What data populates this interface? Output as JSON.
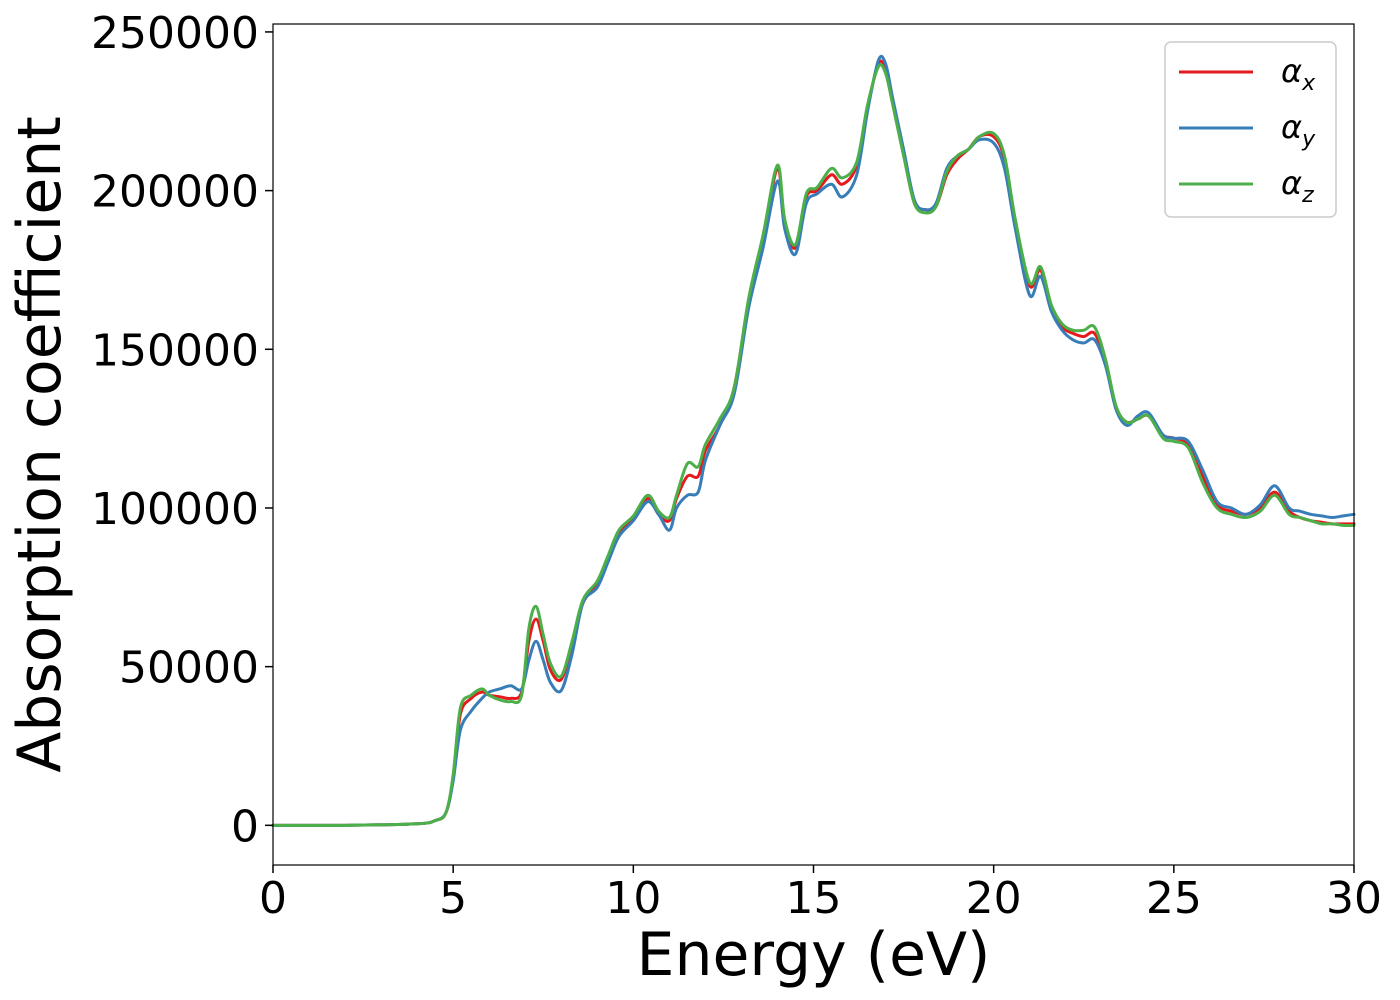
{
  "chart_data": {
    "type": "line",
    "title": "",
    "xlabel": "Energy (eV)",
    "ylabel": "Absorption coefficient",
    "xlim": [
      0,
      30
    ],
    "ylim": [
      -12500,
      252500
    ],
    "xticks": [
      0,
      5,
      10,
      15,
      20,
      25,
      30
    ],
    "xtick_labels": [
      "0",
      "5",
      "10",
      "15",
      "20",
      "25",
      "30"
    ],
    "yticks": [
      0,
      50000,
      100000,
      150000,
      200000,
      250000
    ],
    "ytick_labels": [
      "0",
      "50000",
      "100000",
      "150000",
      "200000",
      "250000"
    ],
    "grid": false,
    "legend_position": "top-right",
    "series": [
      {
        "name": "αx",
        "symbol": "α",
        "subscript": "x",
        "color": "#e41a1c",
        "x": [
          0,
          2,
          4,
          4.5,
          4.8,
          5,
          5.2,
          5.5,
          5.8,
          6,
          6.3,
          6.6,
          6.9,
          7.1,
          7.3,
          7.5,
          7.7,
          8,
          8.3,
          8.6,
          9,
          9.3,
          9.6,
          10,
          10.4,
          10.7,
          11,
          11.2,
          11.5,
          11.8,
          12,
          12.4,
          12.8,
          13.2,
          13.6,
          14,
          14.2,
          14.5,
          14.8,
          15.1,
          15.5,
          15.8,
          16.2,
          16.5,
          16.8,
          17,
          17.2,
          17.5,
          17.8,
          18.1,
          18.4,
          18.7,
          19,
          19.3,
          19.6,
          20,
          20.3,
          20.6,
          21,
          21.3,
          21.6,
          21.9,
          22.2,
          22.5,
          22.8,
          23.1,
          23.4,
          23.7,
          24,
          24.3,
          24.7,
          25,
          25.4,
          25.8,
          26.2,
          26.6,
          27,
          27.4,
          27.8,
          28.2,
          28.5,
          28.8,
          29.1,
          29.4,
          29.7,
          30
        ],
        "y": [
          0,
          0,
          500,
          1500,
          4000,
          15000,
          35000,
          40000,
          42000,
          41000,
          40500,
          40000,
          42000,
          58000,
          65000,
          58000,
          49000,
          46000,
          57000,
          70000,
          76000,
          84000,
          92000,
          97000,
          103000,
          98000,
          96000,
          103000,
          110000,
          110000,
          118000,
          126000,
          138000,
          165000,
          185000,
          207000,
          190000,
          182000,
          198000,
          200000,
          205000,
          202000,
          208000,
          226000,
          240000,
          238000,
          228000,
          212000,
          196000,
          194000,
          195000,
          205000,
          210000,
          213000,
          217000,
          217000,
          210000,
          190000,
          170000,
          175000,
          163000,
          157000,
          155000,
          154000,
          155000,
          146000,
          131000,
          127000,
          128000,
          129000,
          123000,
          122000,
          120000,
          110000,
          101000,
          99000,
          98000,
          100000,
          105000,
          99000,
          97000,
          96000,
          95500,
          95000,
          95000,
          95000
        ]
      },
      {
        "name": "αy",
        "symbol": "α",
        "subscript": "y",
        "color": "#377eb8",
        "x": [
          0,
          2,
          4,
          4.5,
          4.8,
          5,
          5.2,
          5.5,
          5.8,
          6,
          6.3,
          6.6,
          6.9,
          7.1,
          7.3,
          7.5,
          7.7,
          8,
          8.3,
          8.6,
          9,
          9.3,
          9.6,
          10,
          10.4,
          10.7,
          11,
          11.2,
          11.5,
          11.8,
          12,
          12.4,
          12.8,
          13.2,
          13.6,
          14,
          14.2,
          14.5,
          14.8,
          15.1,
          15.5,
          15.8,
          16.2,
          16.5,
          16.8,
          17,
          17.2,
          17.5,
          17.8,
          18.1,
          18.4,
          18.7,
          19,
          19.3,
          19.6,
          20,
          20.3,
          20.6,
          21,
          21.3,
          21.6,
          21.9,
          22.2,
          22.5,
          22.8,
          23.1,
          23.4,
          23.7,
          24,
          24.3,
          24.7,
          25,
          25.4,
          25.8,
          26.2,
          26.6,
          27,
          27.4,
          27.8,
          28.2,
          28.5,
          28.8,
          29.1,
          29.4,
          29.7,
          30
        ],
        "y": [
          0,
          0,
          500,
          1500,
          4000,
          14000,
          30000,
          36000,
          40000,
          42000,
          43000,
          44000,
          43000,
          52000,
          58000,
          52000,
          45000,
          42500,
          54000,
          70000,
          75000,
          83000,
          91000,
          96000,
          102000,
          98000,
          93000,
          100000,
          104000,
          105000,
          115000,
          126000,
          136000,
          163000,
          182000,
          203000,
          188000,
          180000,
          196000,
          199000,
          202000,
          198000,
          205000,
          225000,
          241000,
          240000,
          229000,
          213000,
          197000,
          194000,
          196000,
          207000,
          211000,
          213000,
          216000,
          215000,
          207000,
          188000,
          167000,
          173000,
          162000,
          156000,
          153000,
          152000,
          153000,
          145000,
          131000,
          126000,
          129000,
          130000,
          123000,
          122000,
          121000,
          112000,
          102000,
          100000,
          98000,
          101000,
          107000,
          100000,
          99000,
          98000,
          97500,
          97000,
          97500,
          98000
        ]
      },
      {
        "name": "αz",
        "symbol": "α",
        "subscript": "z",
        "color": "#4daf4a",
        "x": [
          0,
          2,
          4,
          4.5,
          4.8,
          5,
          5.2,
          5.5,
          5.8,
          6,
          6.3,
          6.6,
          6.9,
          7.1,
          7.3,
          7.5,
          7.7,
          8,
          8.3,
          8.6,
          9,
          9.3,
          9.6,
          10,
          10.4,
          10.7,
          11,
          11.2,
          11.5,
          11.8,
          12,
          12.4,
          12.8,
          13.2,
          13.6,
          14,
          14.2,
          14.5,
          14.8,
          15.1,
          15.5,
          15.8,
          16.2,
          16.5,
          16.8,
          17,
          17.2,
          17.5,
          17.8,
          18.1,
          18.4,
          18.7,
          19,
          19.3,
          19.6,
          20,
          20.3,
          20.6,
          21,
          21.3,
          21.6,
          21.9,
          22.2,
          22.5,
          22.8,
          23.1,
          23.4,
          23.7,
          24,
          24.3,
          24.7,
          25,
          25.4,
          25.8,
          26.2,
          26.6,
          27,
          27.4,
          27.8,
          28.2,
          28.5,
          28.8,
          29.1,
          29.4,
          29.7,
          30
        ],
        "y": [
          0,
          0,
          500,
          1500,
          4000,
          16000,
          37000,
          41000,
          43000,
          41000,
          39500,
          39000,
          41000,
          62000,
          69000,
          60000,
          51000,
          47000,
          58000,
          71000,
          77000,
          85000,
          93000,
          97500,
          104000,
          99000,
          97000,
          104000,
          114000,
          113000,
          120000,
          128000,
          138000,
          166000,
          186000,
          208000,
          191000,
          183000,
          199000,
          201000,
          207000,
          204000,
          209000,
          227000,
          239000,
          237000,
          227000,
          211000,
          196000,
          193000,
          195000,
          206000,
          211000,
          213000,
          217000,
          218000,
          211000,
          191000,
          171000,
          176000,
          164000,
          158000,
          156000,
          156000,
          157000,
          147000,
          132000,
          127000,
          128000,
          129000,
          122000,
          121000,
          119000,
          108000,
          100000,
          98000,
          97000,
          99000,
          104000,
          98000,
          97000,
          96000,
          95000,
          95000,
          94500,
          94500
        ]
      }
    ]
  }
}
